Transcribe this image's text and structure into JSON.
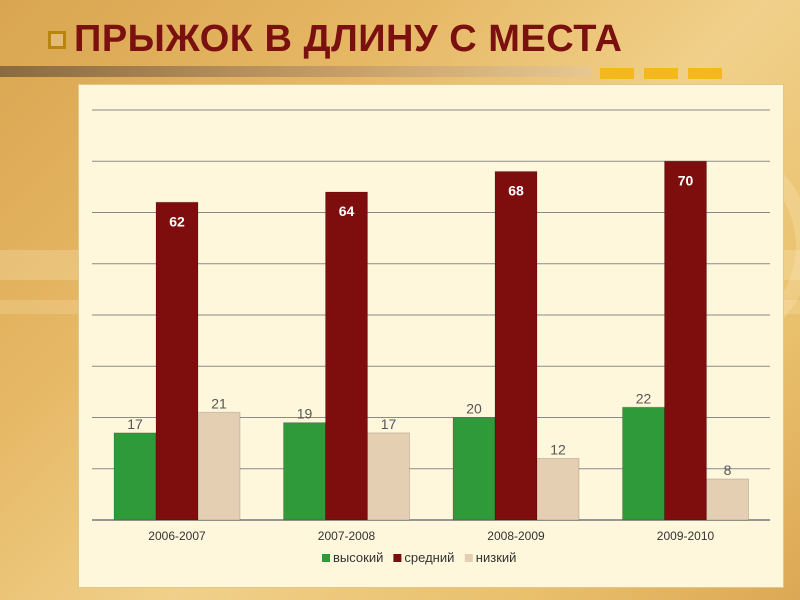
{
  "slide": {
    "title": "ПРЫЖОК В ДЛИНУ С МЕСТА"
  },
  "colors": {
    "title": "#7a1010",
    "series": [
      "#2e9a3a",
      "#7e0d0d",
      "#e4cfb2"
    ]
  },
  "chart_data": {
    "type": "bar",
    "title": "",
    "xlabel": "",
    "ylabel": "",
    "categories": [
      "2006-2007",
      "2007-2008",
      "2008-2009",
      "2009-2010"
    ],
    "series": [
      {
        "name": "высокий",
        "values": [
          17,
          19,
          20,
          22
        ]
      },
      {
        "name": "средний",
        "values": [
          62,
          64,
          68,
          70
        ]
      },
      {
        "name": "низкий",
        "values": [
          21,
          17,
          12,
          8
        ]
      }
    ],
    "data_labels": [
      [
        "17",
        "19",
        "20",
        "22"
      ],
      [
        "62",
        "64",
        "68",
        "70"
      ],
      [
        "21",
        "17",
        "12",
        "8"
      ]
    ],
    "ylim": [
      0,
      80
    ],
    "grid": true,
    "legend_position": "bottom"
  }
}
